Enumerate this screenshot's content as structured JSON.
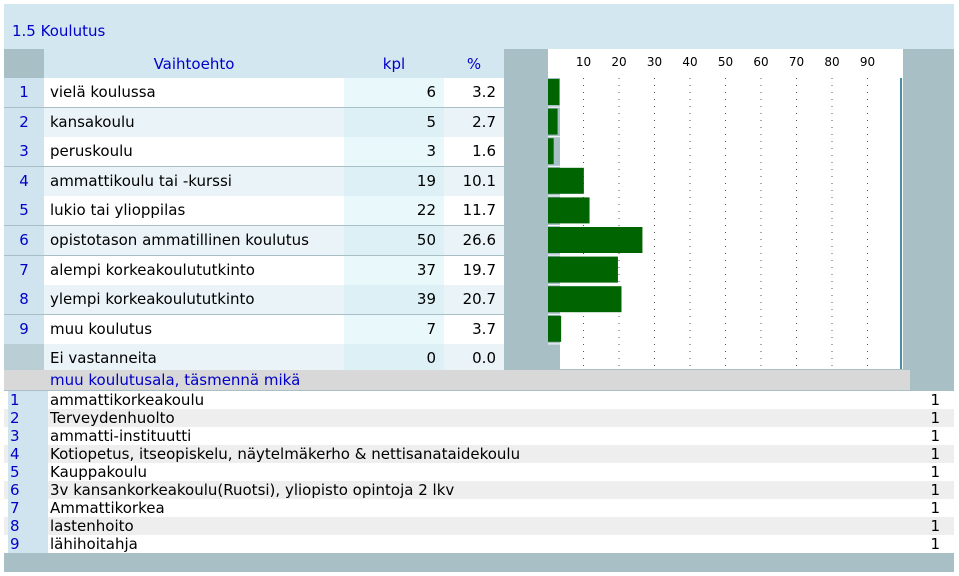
{
  "title": "1.5 Koulutus",
  "headers": {
    "option": "Vaihtoehto",
    "count": "kpl",
    "percent": "%"
  },
  "rows": [
    {
      "num": "1",
      "label": "vielä koulussa",
      "count": "6",
      "percent": "3.2"
    },
    {
      "num": "2",
      "label": "kansakoulu",
      "count": "5",
      "percent": "2.7"
    },
    {
      "num": "3",
      "label": "peruskoulu",
      "count": "3",
      "percent": "1.6"
    },
    {
      "num": "4",
      "label": "ammattikoulu tai -kurssi",
      "count": "19",
      "percent": "10.1"
    },
    {
      "num": "5",
      "label": "lukio tai ylioppilas",
      "count": "22",
      "percent": "11.7"
    },
    {
      "num": "6",
      "label": "opistotason ammatillinen koulutus",
      "count": "50",
      "percent": "26.6"
    },
    {
      "num": "7",
      "label": "alempi korkeakoulututkinto",
      "count": "37",
      "percent": "19.7"
    },
    {
      "num": "8",
      "label": "ylempi korkeakoulututkinto",
      "count": "39",
      "percent": "20.7"
    },
    {
      "num": "9",
      "label": "muu koulutus",
      "count": "7",
      "percent": "3.7"
    },
    {
      "num": "",
      "label": "Ei vastanneita",
      "count": "0",
      "percent": "0.0"
    }
  ],
  "chart_data": {
    "type": "bar",
    "orientation": "horizontal",
    "categories": [
      "vielä koulussa",
      "kansakoulu",
      "peruskoulu",
      "ammattikoulu tai -kurssi",
      "lukio tai ylioppilas",
      "opistotason ammatillinen koulutus",
      "alempi korkeakoulututkinto",
      "ylempi korkeakoulututkinto",
      "muu koulutus",
      "Ei vastanneita"
    ],
    "values": [
      3.2,
      2.7,
      1.6,
      10.1,
      11.7,
      26.6,
      19.7,
      20.7,
      3.7,
      0.0
    ],
    "xlim": [
      0,
      100
    ],
    "ticks": [
      10,
      20,
      30,
      40,
      50,
      60,
      70,
      80,
      90
    ],
    "bar_color": "#006400",
    "grid": true
  },
  "open_answers": {
    "heading": "muu koulutusala, täsmennä mikä",
    "items": [
      {
        "num": "1",
        "text": "ammattikorkeakoulu",
        "count": "1"
      },
      {
        "num": "2",
        "text": "Terveydenhuolto",
        "count": "1"
      },
      {
        "num": "3",
        "text": "ammatti-instituutti",
        "count": "1"
      },
      {
        "num": "4",
        "text": "Kotiopetus, itseopiskelu, näytelmäkerho & nettisanataidekoulu",
        "count": "1"
      },
      {
        "num": "5",
        "text": "Kauppakoulu",
        "count": "1"
      },
      {
        "num": "6",
        "text": "3v kansankorkeakoulu(Ruotsi), yliopisto opintoja 2 lkv",
        "count": "1"
      },
      {
        "num": "7",
        "text": "Ammattikorkea",
        "count": "1"
      },
      {
        "num": "8",
        "text": "lastenhoito",
        "count": "1"
      },
      {
        "num": "9",
        "text": "lähihoitahja",
        "count": "1"
      }
    ]
  }
}
